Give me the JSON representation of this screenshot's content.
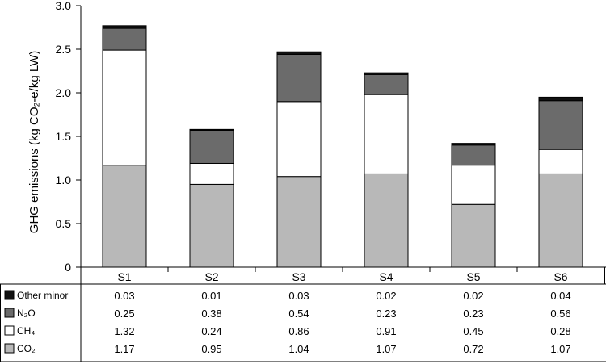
{
  "chart_data": {
    "type": "bar",
    "stacked": true,
    "categories": [
      "S1",
      "S2",
      "S3",
      "S4",
      "S5",
      "S6"
    ],
    "series": [
      {
        "name": "CO₂",
        "color": "#b8b8b8",
        "values": [
          1.17,
          0.95,
          1.04,
          1.07,
          0.72,
          1.07
        ]
      },
      {
        "name": "CH₄",
        "color": "#ffffff",
        "values": [
          1.32,
          0.24,
          0.86,
          0.91,
          0.45,
          0.28
        ]
      },
      {
        "name": "N₂O",
        "color": "#6b6b6b",
        "values": [
          0.25,
          0.38,
          0.54,
          0.23,
          0.23,
          0.56
        ]
      },
      {
        "name": "Other minor",
        "color": "#111111",
        "values": [
          0.03,
          0.01,
          0.03,
          0.02,
          0.02,
          0.04
        ]
      }
    ],
    "table_rows": [
      {
        "label": "Other minor",
        "values": [
          "0.03",
          "0.01",
          "0.03",
          "0.02",
          "0.02",
          "0.04"
        ]
      },
      {
        "label": "N₂O",
        "values": [
          "0.25",
          "0.38",
          "0.54",
          "0.23",
          "0.23",
          "0.56"
        ]
      },
      {
        "label": "CH₄",
        "values": [
          "1.32",
          "0.24",
          "0.86",
          "0.91",
          "0.45",
          "0.28"
        ]
      },
      {
        "label": "CO₂",
        "values": [
          "1.17",
          "0.95",
          "1.04",
          "1.07",
          "0.72",
          "1.07"
        ]
      }
    ],
    "ylabel": "GHG emissions (kg CO₂-e/kg LW)",
    "ylim": [
      0,
      3.0
    ],
    "yticks": [
      "0",
      "0.5",
      "1.0",
      "1.5",
      "2.0",
      "2.5",
      "3.0"
    ],
    "grid": false,
    "legend": "data-table-below"
  }
}
